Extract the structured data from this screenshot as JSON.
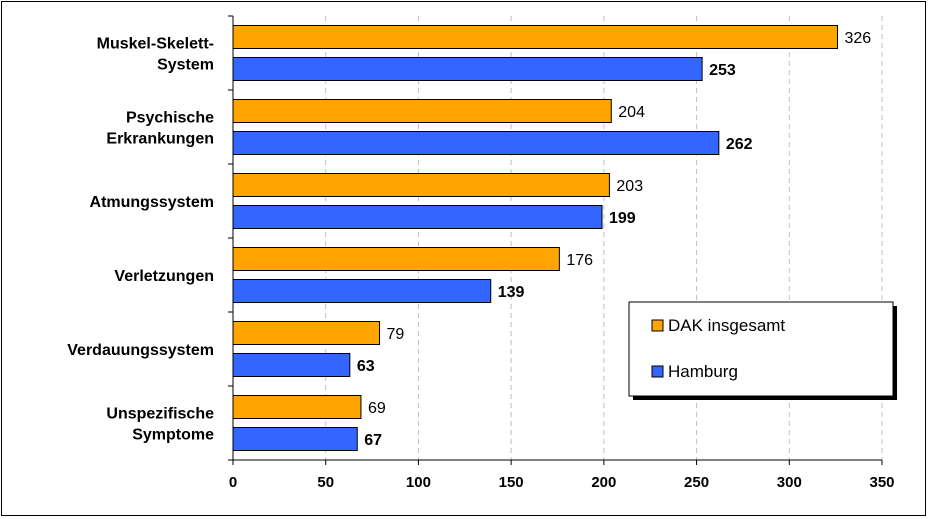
{
  "chart_data": {
    "type": "bar",
    "orientation": "horizontal",
    "title": "",
    "xlabel": "",
    "ylabel": "",
    "categories": [
      [
        "Muskel-Skelett-",
        "System"
      ],
      [
        "Psychische",
        "Erkrankungen"
      ],
      [
        "Atmungssystem"
      ],
      [
        "Verletzungen"
      ],
      [
        "Verdauungssystem"
      ],
      [
        "Unspezifische",
        "Symptome"
      ]
    ],
    "series": [
      {
        "name": "DAK insgesamt",
        "color": "#ffa500",
        "values": [
          326,
          204,
          203,
          176,
          79,
          69
        ]
      },
      {
        "name": "Hamburg",
        "color": "#3366ff",
        "values": [
          253,
          262,
          199,
          139,
          63,
          67
        ]
      }
    ],
    "xlim": [
      0,
      350
    ],
    "xticks": [
      0,
      50,
      100,
      150,
      200,
      250,
      300,
      350
    ],
    "grid": "vertical dashed",
    "legend_position": "lower-right"
  }
}
